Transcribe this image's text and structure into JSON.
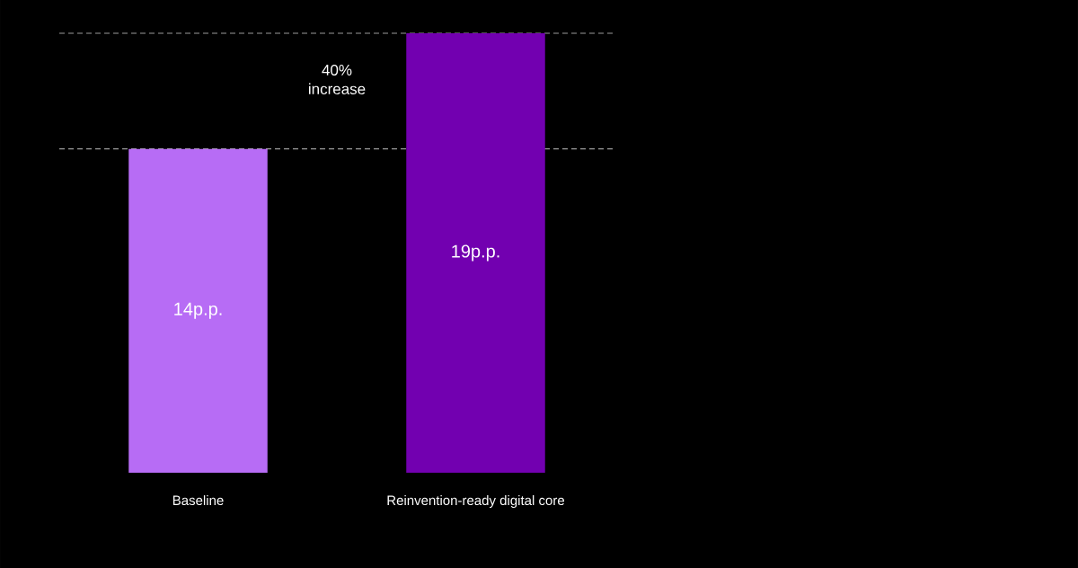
{
  "chart_data": {
    "type": "bar",
    "categories": [
      "Baseline",
      "Reinvention-ready digital core"
    ],
    "values": [
      14,
      19
    ],
    "colors": [
      "#b76cf5",
      "#7200b0"
    ],
    "value_labels": [
      "14p.p.",
      "19p.p."
    ],
    "ref_lines": [
      {
        "axis": "y",
        "value": 14,
        "color": "#9a9a9a",
        "line_style": "dashed"
      },
      {
        "axis": "y",
        "value": 19,
        "color": "#9a9a9a",
        "line_style": "dashed"
      }
    ],
    "annotations": [
      "40% increase"
    ]
  }
}
